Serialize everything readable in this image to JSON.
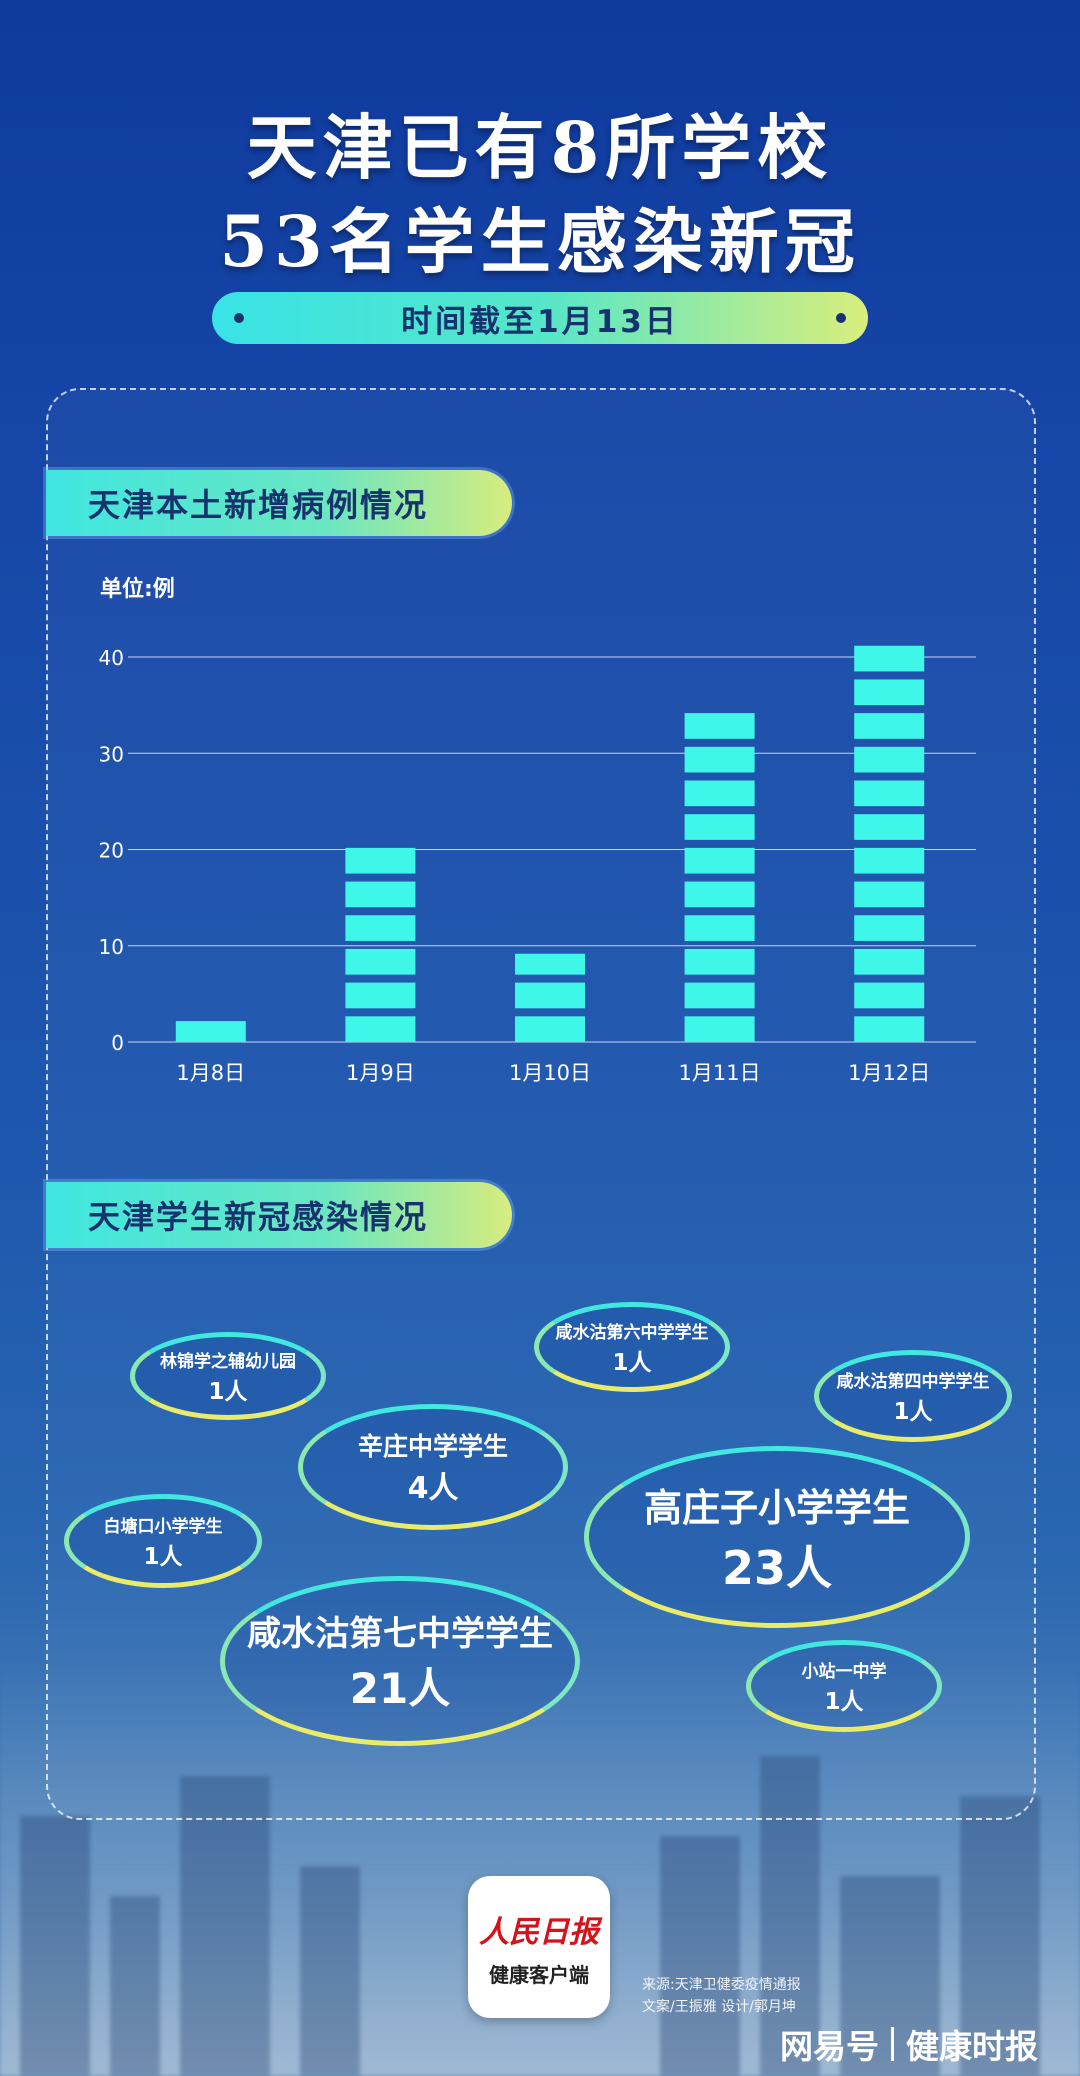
{
  "header": {
    "title_line1": "天津已有8所学校",
    "title_line2": "53名学生感染新冠",
    "date_text": "时间截至1月13日"
  },
  "section1": {
    "title": "天津本土新增病例情况",
    "unit": "单位:例"
  },
  "chart_data": {
    "type": "bar",
    "title": "天津本土新增病例情况",
    "ylabel": "单位:例",
    "categories": [
      "1月8日",
      "1月9日",
      "1月10日",
      "1月11日",
      "1月12日"
    ],
    "values": [
      3,
      21,
      10,
      35,
      42
    ],
    "ylim": [
      0,
      40
    ],
    "yticks": [
      0,
      10,
      20,
      30,
      40
    ],
    "grid": true,
    "bar_color": "#3ff7e8"
  },
  "section2": {
    "title": "天津学生新冠感染情况",
    "bubbles": [
      {
        "name": "林锦学之辅幼儿园",
        "count": "1人"
      },
      {
        "name": "咸水沽第六中学学生",
        "count": "1人"
      },
      {
        "name": "咸水沽第四中学学生",
        "count": "1人"
      },
      {
        "name": "辛庄中学学生",
        "count": "4人"
      },
      {
        "name": "白塘口小学学生",
        "count": "1人"
      },
      {
        "name": "高庄子小学学生",
        "count": "23人"
      },
      {
        "name": "咸水沽第七中学学生",
        "count": "21人"
      },
      {
        "name": "小站一中学",
        "count": "1人"
      }
    ]
  },
  "footer": {
    "logo_main": "人民日报",
    "logo_sub": "健康客户端",
    "source": "来源:天津卫健委疫情通报",
    "credits": "文案/王振雅   设计/郭月坤",
    "brand_left": "网易号",
    "brand_right": "健康时报"
  }
}
